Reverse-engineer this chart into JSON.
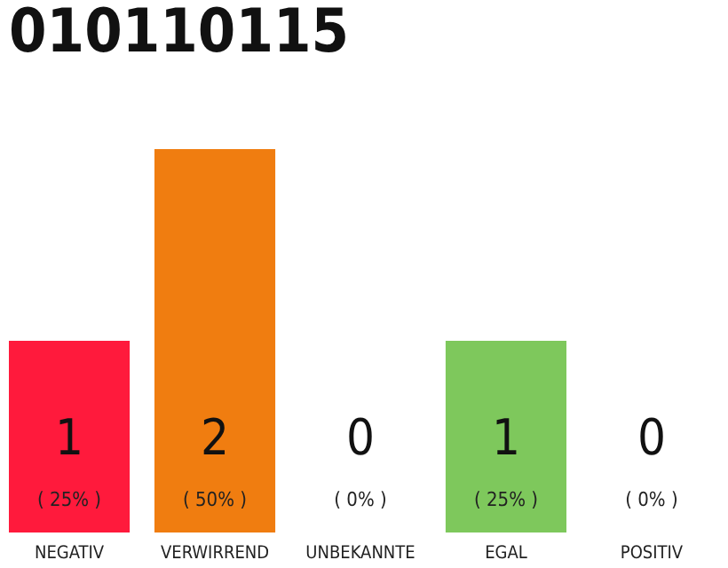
{
  "chart_data": {
    "type": "bar",
    "title": "010110115",
    "categories": [
      "NEGATIV",
      "VERWIRREND",
      "UNBEKANNTE",
      "EGAL",
      "POSITIV"
    ],
    "values": [
      1,
      2,
      0,
      1,
      0
    ],
    "colors": [
      "#ff1a3c",
      "#f07d10",
      "#9e9e9e",
      "#7ec85c",
      "#9e9e9e"
    ],
    "data_labels": true,
    "annotations": [
      "( 25% )",
      "( 50% )",
      "( 0% )",
      "( 25% )",
      "( 0% )"
    ]
  }
}
